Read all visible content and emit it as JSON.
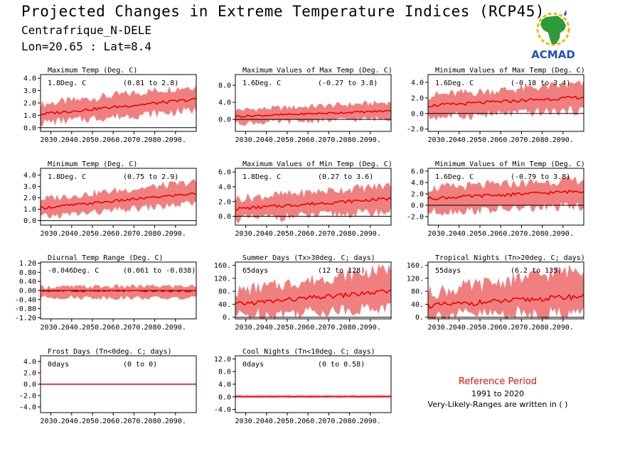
{
  "header": {
    "title": "Projected Changes in Extreme Temperature Indices (RCP45)",
    "location": "Centrafrique_N-DELE",
    "coords": "Lon=20.65 : Lat=8.4"
  },
  "logo": {
    "text": "ACMAD",
    "icon": "africa-map-icon"
  },
  "reference": {
    "title": "Reference Period",
    "years": "1991 to 2020",
    "note": "Very-Likely-Ranges are written in ( )"
  },
  "colors": {
    "band": "#f08080",
    "median": "#ee0000",
    "axis": "#000000",
    "reference_text": "#dd1111"
  },
  "chart_data": [
    {
      "type": "area",
      "title": "Maximum Temp (Deg. C)",
      "median_label": "1.8Deg. C",
      "range_label": "(0.81 to 2.8)",
      "x_ticks": [
        "2030.",
        "2040.",
        "2050.",
        "2060.",
        "2070.",
        "2080.",
        "2090."
      ],
      "xlim": [
        2025,
        2100
      ],
      "y_ticks": [
        "4.0",
        "3.0",
        "2.0",
        "1.0",
        "0.0"
      ],
      "ylim": [
        -0.3,
        4.3
      ],
      "series": [
        {
          "x": [
            2025,
            2100
          ],
          "median": [
            1.1,
            2.3
          ],
          "low": [
            0.4,
            1.4
          ],
          "high": [
            1.9,
            3.4
          ]
        }
      ]
    },
    {
      "type": "area",
      "title": "Maximum Values of Max Temp (Deg. C)",
      "median_label": "1.6Deg. C",
      "range_label": "(-0.27 to 3.8)",
      "x_ticks": [
        "2030.",
        "2040.",
        "2050.",
        "2060.",
        "2070.",
        "2080.",
        "2090."
      ],
      "xlim": [
        2025,
        2100
      ],
      "y_ticks": [
        "8.0",
        "4.0",
        "0.0"
      ],
      "ylim": [
        -2.8,
        10.5
      ],
      "series": [
        {
          "x": [
            2025,
            2100
          ],
          "median": [
            0.7,
            2.0
          ],
          "low": [
            -0.9,
            0.2
          ],
          "high": [
            2.2,
            4.0
          ]
        }
      ]
    },
    {
      "type": "area",
      "title": "Minimum Values of Max Temp (Deg. C)",
      "median_label": "1.6Deg. C",
      "range_label": "(-0.18 to 3.4)",
      "x_ticks": [
        "2030.",
        "2040.",
        "2050.",
        "2060.",
        "2070.",
        "2080.",
        "2090."
      ],
      "xlim": [
        2025,
        2100
      ],
      "y_ticks": [
        "4.0",
        "2.0",
        "0.0",
        "-2.0"
      ],
      "ylim": [
        -2.3,
        5.0
      ],
      "series": [
        {
          "x": [
            2025,
            2100
          ],
          "median": [
            1.0,
            2.1
          ],
          "low": [
            -0.5,
            0.4
          ],
          "high": [
            2.3,
            3.8
          ]
        }
      ]
    },
    {
      "type": "area",
      "title": "Minimum Temp (Deg. C)",
      "median_label": "1.8Deg. C",
      "range_label": "(0.75 to 2.9)",
      "x_ticks": [
        "2030.",
        "2040.",
        "2050.",
        "2060.",
        "2070.",
        "2080.",
        "2090."
      ],
      "xlim": [
        2025,
        2100
      ],
      "y_ticks": [
        "4.0",
        "3.0",
        "2.0",
        "1.0",
        "0.0"
      ],
      "ylim": [
        -0.4,
        4.6
      ],
      "series": [
        {
          "x": [
            2025,
            2100
          ],
          "median": [
            1.1,
            2.4
          ],
          "low": [
            0.3,
            1.5
          ],
          "high": [
            1.9,
            3.4
          ]
        }
      ]
    },
    {
      "type": "area",
      "title": "Maximum Values of Min Temp (Deg. C)",
      "median_label": "1.8Deg. C",
      "range_label": "(0.27 to 3.6)",
      "x_ticks": [
        "2030.",
        "2040.",
        "2050.",
        "2060.",
        "2070.",
        "2080.",
        "2090."
      ],
      "xlim": [
        2025,
        2100
      ],
      "y_ticks": [
        "6.0",
        "4.0",
        "2.0",
        "0.0"
      ],
      "ylim": [
        -1.2,
        6.5
      ],
      "series": [
        {
          "x": [
            2025,
            2100
          ],
          "median": [
            1.0,
            2.4
          ],
          "low": [
            -0.4,
            0.6
          ],
          "high": [
            2.4,
            4.2
          ]
        }
      ]
    },
    {
      "type": "area",
      "title": "Minimum Values of Min Temp (Deg. C)",
      "median_label": "1.6Deg. C",
      "range_label": "(-0.79 to 3.8)",
      "x_ticks": [
        "2030.",
        "2040.",
        "2050.",
        "2060.",
        "2070.",
        "2080.",
        "2090."
      ],
      "xlim": [
        2025,
        2100
      ],
      "y_ticks": [
        "6.0",
        "4.0",
        "2.0",
        "0.0",
        "-2.0"
      ],
      "ylim": [
        -3.5,
        6.5
      ],
      "series": [
        {
          "x": [
            2025,
            2100
          ],
          "median": [
            1.2,
            2.5
          ],
          "low": [
            -1.2,
            -0.2
          ],
          "high": [
            3.0,
            4.5
          ]
        }
      ]
    },
    {
      "type": "area",
      "title": "Diurnal Temp Range (Deg. C)",
      "median_label": "-0.046Deg. C",
      "range_label": "(0.061 to -0.038)",
      "x_ticks": [
        "2030.",
        "2040.",
        "2050.",
        "2060.",
        "2070.",
        "2080.",
        "2090."
      ],
      "xlim": [
        2025,
        2100
      ],
      "y_ticks": [
        "1.20",
        "0.80",
        "0.40",
        "0.00",
        "-0.40",
        "-0.80",
        "-1.20"
      ],
      "ylim": [
        -1.25,
        1.25
      ],
      "series": [
        {
          "x": [
            2025,
            2100
          ],
          "median": [
            -0.02,
            -0.03
          ],
          "low": [
            -0.3,
            -0.35
          ],
          "high": [
            0.15,
            0.2
          ]
        }
      ]
    },
    {
      "type": "area",
      "title": "Summer Days (Tx>30deg. C; days)",
      "median_label": "65days",
      "range_label": "(12 to 128)",
      "x_ticks": [
        "2030.",
        "2040.",
        "2050.",
        "2060.",
        "2070.",
        "2080.",
        "2090."
      ],
      "xlim": [
        2025,
        2100
      ],
      "y_ticks": [
        "160.",
        "120.",
        "80.",
        "40.",
        "0."
      ],
      "ylim": [
        -5,
        170
      ],
      "series": [
        {
          "x": [
            2025,
            2100
          ],
          "median": [
            40,
            80
          ],
          "low": [
            5,
            30
          ],
          "high": [
            80,
            150
          ]
        }
      ]
    },
    {
      "type": "area",
      "title": "Tropical Nights (Tn>20deg. C; days)",
      "median_label": "55days",
      "range_label": "(6.2 to 135)",
      "x_ticks": [
        "2030.",
        "2040.",
        "2050.",
        "2060.",
        "2070.",
        "2080.",
        "2090."
      ],
      "xlim": [
        2025,
        2100
      ],
      "y_ticks": [
        "160.",
        "120.",
        "80.",
        "40.",
        "0."
      ],
      "ylim": [
        -5,
        170
      ],
      "series": [
        {
          "x": [
            2025,
            2100
          ],
          "median": [
            35,
            65
          ],
          "low": [
            5,
            15
          ],
          "high": [
            75,
            150
          ]
        }
      ]
    },
    {
      "type": "area",
      "title": "Frost Days (Tn<0deg. C; days)",
      "median_label": "0days",
      "range_label": "(0 to 0)",
      "x_ticks": [
        "2030.",
        "2040.",
        "2050.",
        "2060.",
        "2070.",
        "2080.",
        "2090."
      ],
      "xlim": [
        2025,
        2100
      ],
      "y_ticks": [
        "4.0",
        "2.0",
        "0.0",
        "-2.0",
        "-4.0"
      ],
      "ylim": [
        -5,
        5
      ],
      "series": [
        {
          "x": [
            2025,
            2100
          ],
          "median": [
            0,
            0
          ],
          "low": [
            0,
            0
          ],
          "high": [
            0,
            0
          ]
        }
      ]
    },
    {
      "type": "area",
      "title": "Cool Nights (Tn<10deg. C; days)",
      "median_label": "0days",
      "range_label": "(0 to 0.58)",
      "x_ticks": [
        "2030.",
        "2040.",
        "2050.",
        "2060.",
        "2070.",
        "2080.",
        "2090."
      ],
      "xlim": [
        2025,
        2100
      ],
      "y_ticks": [
        "12.0",
        "8.0",
        "4.0",
        "0.0",
        "-4.0"
      ],
      "ylim": [
        -5,
        13
      ],
      "series": [
        {
          "x": [
            2025,
            2100
          ],
          "median": [
            0,
            0
          ],
          "low": [
            0,
            0
          ],
          "high": [
            0.5,
            0.5
          ]
        }
      ]
    }
  ]
}
